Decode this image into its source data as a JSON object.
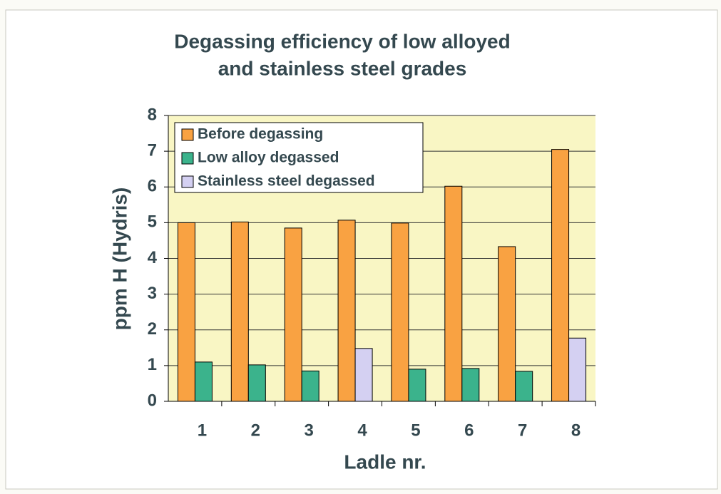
{
  "chart_data": {
    "type": "bar",
    "title": [
      "Degassing efficiency of low alloyed",
      "and stainless steel grades"
    ],
    "x_label": "Ladle nr.",
    "y_label": "ppm H (Hydris)",
    "categories": [
      "1",
      "2",
      "3",
      "4",
      "5",
      "6",
      "7",
      "8"
    ],
    "series": [
      {
        "name": "Before degassing",
        "color": "#f9a242",
        "values": [
          5.0,
          5.02,
          4.85,
          5.07,
          4.99,
          6.02,
          4.33,
          7.05
        ]
      },
      {
        "name": "Low alloy degassed",
        "color": "#3bb38c",
        "values": [
          1.1,
          1.02,
          0.85,
          null,
          0.9,
          0.92,
          0.84,
          null
        ]
      },
      {
        "name": "Stainless steel degassed",
        "color": "#d4d0f2",
        "values": [
          null,
          null,
          null,
          1.48,
          null,
          null,
          null,
          1.77
        ]
      }
    ],
    "ylim": [
      0,
      8
    ],
    "yticks": [
      0,
      1,
      2,
      3,
      4,
      5,
      6,
      7,
      8
    ],
    "grid": true,
    "legend": "upper left"
  }
}
